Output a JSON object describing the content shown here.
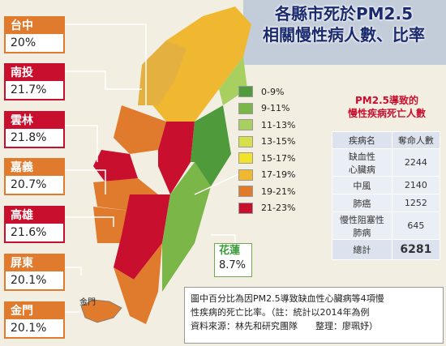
{
  "title": {
    "line1": "各縣市死於PM2.5",
    "line2": "相關慢性病人數、比率"
  },
  "counties": [
    {
      "name": "台中",
      "pct": "20%",
      "tier": "orange"
    },
    {
      "name": "南投",
      "pct": "21.7%",
      "tier": "red"
    },
    {
      "name": "雲林",
      "pct": "21.8%",
      "tier": "red"
    },
    {
      "name": "嘉義",
      "pct": "20.7%",
      "tier": "orange"
    },
    {
      "name": "高雄",
      "pct": "21.6%",
      "tier": "red"
    },
    {
      "name": "屏東",
      "pct": "20.1%",
      "tier": "orange"
    },
    {
      "name": "金門",
      "pct": "20.1%",
      "tier": "orange"
    }
  ],
  "hualien": {
    "name": "花蓮",
    "pct": "8.7%"
  },
  "kinmen_label": "金門",
  "legend": [
    {
      "label": "0-9%",
      "color": "#4f9a3a"
    },
    {
      "label": "9-11%",
      "color": "#7ab648"
    },
    {
      "label": "11-13%",
      "color": "#a8d060"
    },
    {
      "label": "13-15%",
      "color": "#d6e04a"
    },
    {
      "label": "15-17%",
      "color": "#f2e22a"
    },
    {
      "label": "17-19%",
      "color": "#f0b830"
    },
    {
      "label": "19-21%",
      "color": "#e07a2c"
    },
    {
      "label": "21-23%",
      "color": "#c8102e"
    }
  ],
  "table": {
    "title1": "PM2.5導致的",
    "title2": "慢性疾病死亡人數",
    "headers": [
      "疾病名",
      "奪命人數"
    ],
    "rows": [
      {
        "disease": [
          "缺血性",
          "心臟病"
        ],
        "count": "2244"
      },
      {
        "disease": [
          "中風"
        ],
        "count": "2140"
      },
      {
        "disease": [
          "肺癌"
        ],
        "count": "1252"
      },
      {
        "disease": [
          "慢性阻塞性",
          "肺病"
        ],
        "count": "645"
      }
    ],
    "total_label": "總計",
    "total_value": "6281"
  },
  "note": {
    "line1": "圖中百分比為因PM2.5導致缺血性心臟病等4項慢",
    "line2": "性疾病的死亡比率。（註：統計以2014年為例",
    "line3": "資料來源：林先和研究團隊　　整理：廖珮妤）"
  }
}
